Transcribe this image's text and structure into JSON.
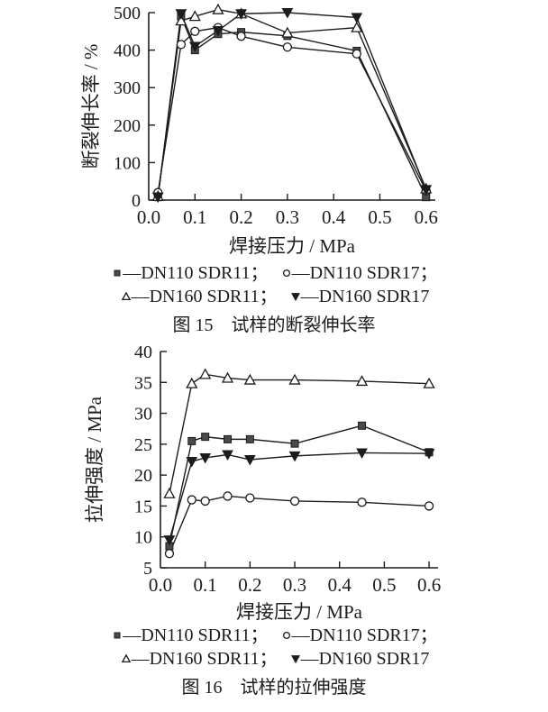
{
  "page": {
    "background": "#ffffff",
    "text_color": "#1c1c1c",
    "line_color": "#1c1c1c",
    "square_fill": "#4a4a4a"
  },
  "chart_data": [
    {
      "type": "line",
      "caption": "图 15　试样的断裂伸长率",
      "xlabel": "焊接压力 / MPa",
      "ylabel": "断裂伸长率 / %",
      "xlim": [
        0,
        0.62
      ],
      "ylim": [
        0,
        500
      ],
      "xticks": {
        "values": [
          0.1,
          0.2,
          0.3,
          0.4,
          0.5,
          0.6
        ],
        "labels": [
          "0.1",
          "0.2",
          "0.3",
          "0.4",
          "0.5",
          "0.6"
        ]
      },
      "xorigin_label": "0.0",
      "yticks": {
        "values": [
          0,
          100,
          200,
          300,
          400,
          500
        ],
        "labels": [
          "0",
          "100",
          "200",
          "300",
          "400",
          "500"
        ]
      },
      "grid": false,
      "legend_position": "below",
      "x": [
        0.02,
        0.07,
        0.1,
        0.15,
        0.2,
        0.3,
        0.45,
        0.6
      ],
      "series": [
        {
          "name": "DN110 SDR11",
          "marker": "square-filled",
          "values": [
            8,
            490,
            400,
            443,
            448,
            438,
            398,
            8
          ]
        },
        {
          "name": "DN110 SDR17",
          "marker": "circle-open",
          "values": [
            20,
            415,
            450,
            460,
            437,
            408,
            390,
            25
          ]
        },
        {
          "name": "DN160 SDR11",
          "marker": "triangle-up-open",
          "values": [
            10,
            478,
            490,
            508,
            497,
            446,
            460,
            30
          ]
        },
        {
          "name": "DN160 SDR17",
          "marker": "triangle-down-filled",
          "values": [
            8,
            497,
            410,
            452,
            497,
            500,
            487,
            28
          ]
        }
      ],
      "legend_rows": [
        [
          {
            "marker": "square-filled",
            "text": "—DN110 SDR11；"
          },
          {
            "marker": "circle-open",
            "text": "—DN110 SDR17；"
          }
        ],
        [
          {
            "marker": "triangle-up-open",
            "text": "—DN160 SDR11；"
          },
          {
            "marker": "triangle-down-filled",
            "text": "—DN160 SDR17"
          }
        ]
      ]
    },
    {
      "type": "line",
      "caption": "图 16　试样的拉伸强度",
      "xlabel": "焊接压力 / MPa",
      "ylabel": "拉伸强度 / MPa",
      "xlim": [
        0,
        0.62
      ],
      "ylim": [
        5,
        40
      ],
      "xticks": {
        "values": [
          0.1,
          0.2,
          0.3,
          0.4,
          0.5,
          0.6
        ],
        "labels": [
          "0.1",
          "0.2",
          "0.3",
          "0.4",
          "0.5",
          "0.6"
        ]
      },
      "xorigin_label": "0.0",
      "yticks": {
        "values": [
          5,
          10,
          15,
          20,
          25,
          30,
          35,
          40
        ],
        "labels": [
          "5",
          "10",
          "15",
          "20",
          "25",
          "30",
          "35",
          "40"
        ]
      },
      "grid": false,
      "legend_position": "below",
      "x": [
        0.02,
        0.07,
        0.1,
        0.15,
        0.2,
        0.3,
        0.45,
        0.6
      ],
      "series": [
        {
          "name": "DN110 SDR11",
          "marker": "square-filled",
          "values": [
            8.5,
            25.5,
            26.2,
            25.8,
            25.8,
            25.1,
            28.0,
            23.7
          ]
        },
        {
          "name": "DN110 SDR17",
          "marker": "circle-open",
          "values": [
            7.3,
            16.0,
            15.8,
            16.6,
            16.3,
            15.8,
            15.6,
            15.0
          ]
        },
        {
          "name": "DN160 SDR11",
          "marker": "triangle-up-open",
          "values": [
            17.0,
            34.8,
            36.3,
            35.7,
            35.4,
            35.4,
            35.2,
            34.8
          ]
        },
        {
          "name": "DN160 SDR17",
          "marker": "triangle-down-filled",
          "values": [
            9.5,
            22.2,
            22.8,
            23.3,
            22.5,
            23.1,
            23.6,
            23.5
          ]
        }
      ],
      "legend_rows": [
        [
          {
            "marker": "square-filled",
            "text": "—DN110 SDR11；"
          },
          {
            "marker": "circle-open",
            "text": "—DN110 SDR17；"
          }
        ],
        [
          {
            "marker": "triangle-up-open",
            "text": "—DN160 SDR11；"
          },
          {
            "marker": "triangle-down-filled",
            "text": "—DN160 SDR17"
          }
        ]
      ]
    }
  ]
}
